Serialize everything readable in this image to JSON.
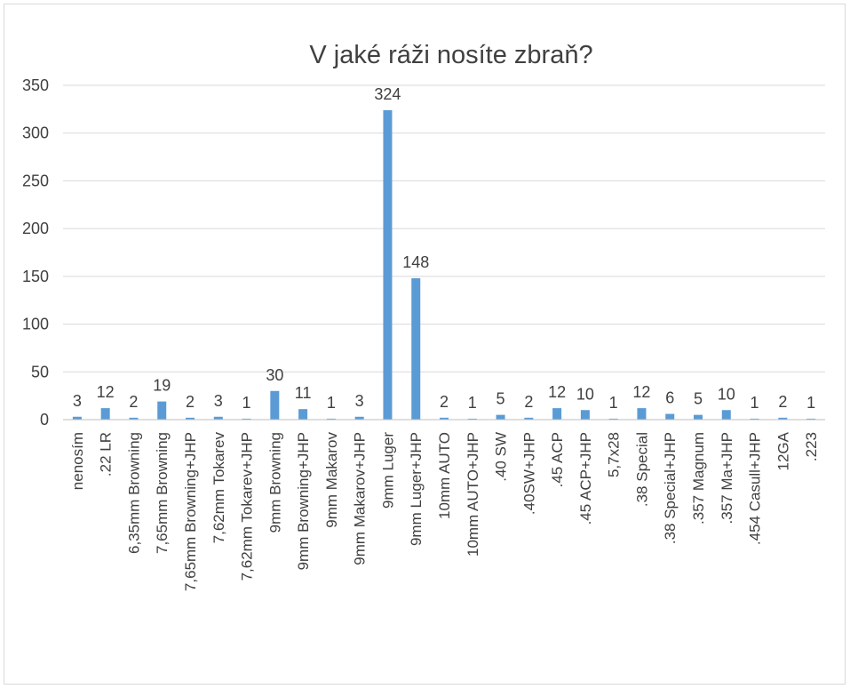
{
  "chart_data": {
    "type": "bar",
    "title": "V jaké ráži nosíte zbraň?",
    "xlabel": "",
    "ylabel": "",
    "ylim": [
      0,
      350
    ],
    "yticks": [
      0,
      50,
      100,
      150,
      200,
      250,
      300,
      350
    ],
    "grid": true,
    "legend": "none",
    "bar_color": "#5b9bd5",
    "categories": [
      "nenosím",
      ".22 LR",
      "6,35mm Browning",
      "7,65mm Browning",
      "7,65mm Browning+JHP",
      "7,62mm Tokarev",
      "7,62mm Tokarev+JHP",
      "9mm Browning",
      "9mm Browning+JHP",
      "9mm Makarov",
      "9mm Makarov+JHP",
      "9mm Luger",
      "9mm Luger+JHP",
      "10mm AUTO",
      "10mm AUTO+JHP",
      ".40 SW",
      ".40SW+JHP",
      ".45 ACP",
      ".45 ACP+JHP",
      "5,7x28",
      ".38 Special",
      ".38 Special+JHP",
      ".357 Magnum",
      ".357 Ma+JHP",
      ".454 Casull+JHP",
      "12GA",
      ".223"
    ],
    "values": [
      3,
      12,
      2,
      19,
      2,
      3,
      1,
      30,
      11,
      1,
      3,
      324,
      148,
      2,
      1,
      5,
      2,
      12,
      10,
      1,
      12,
      6,
      5,
      10,
      1,
      2,
      1
    ]
  }
}
